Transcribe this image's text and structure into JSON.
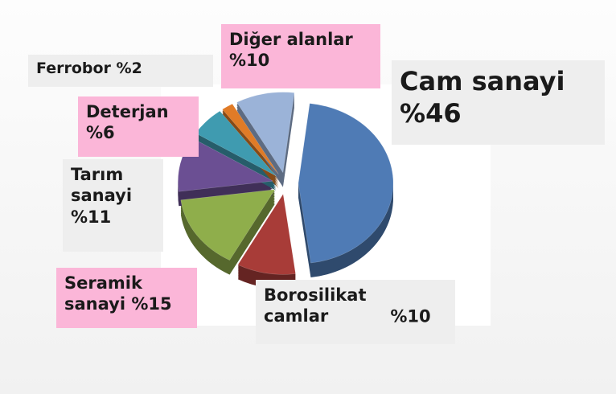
{
  "chart_data": {
    "type": "pie",
    "categories": [
      "Cam sanayi",
      "Borosilikat camlar",
      "Seramik sanayi",
      "Tarım sanayi",
      "Deterjan",
      "Ferrobor",
      "Diğer alanlar"
    ],
    "values": [
      46,
      10,
      15,
      11,
      6,
      2,
      10
    ],
    "value_labels": [
      "%46",
      "%10",
      "%15",
      "%11",
      "%6",
      "%2",
      "%10"
    ],
    "colors": [
      "#4f7bb5",
      "#a83c38",
      "#8fae4b",
      "#6b4f93",
      "#3f9bb0",
      "#e07b27",
      "#9bb3d8"
    ]
  }
}
